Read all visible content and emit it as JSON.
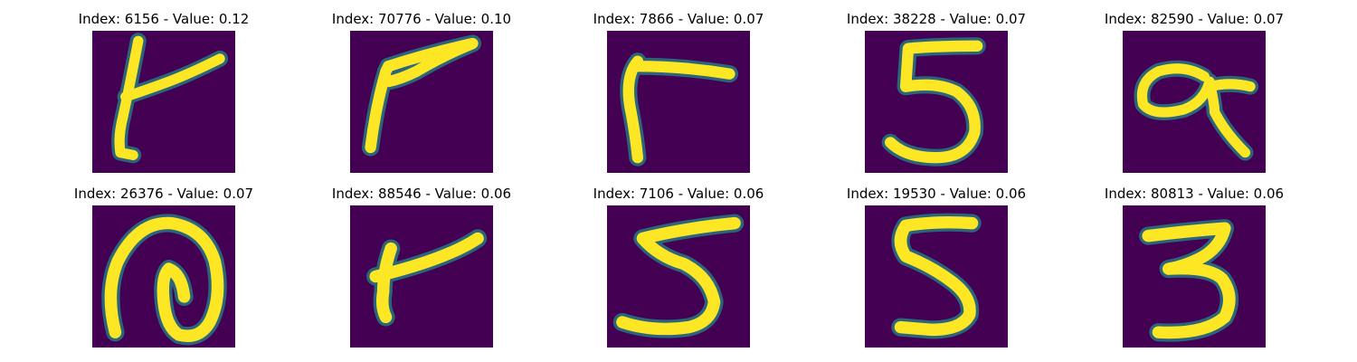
{
  "figure": {
    "background": "#ffffff",
    "cmap": "viridis",
    "image_bg": "#440154",
    "stroke_core": "#fde725",
    "stroke_edge": "#35b779",
    "stroke_halo": "#21908d",
    "panels": [
      {
        "title": "Index: 6156 - Value: 0.12",
        "icon": "handwritten-glyph-t-icon"
      },
      {
        "title": "Index: 70776 - Value: 0.10",
        "icon": "handwritten-glyph-f-icon"
      },
      {
        "title": "Index: 7866 - Value: 0.07",
        "icon": "handwritten-glyph-r-icon"
      },
      {
        "title": "Index: 38228 - Value: 0.07",
        "icon": "handwritten-digit-5-icon"
      },
      {
        "title": "Index: 82590 - Value: 0.07",
        "icon": "handwritten-glyph-a-icon"
      },
      {
        "title": "Index: 26376 - Value: 0.07",
        "icon": "handwritten-glyph-loop-icon"
      },
      {
        "title": "Index: 88546 - Value: 0.06",
        "icon": "handwritten-glyph-r-icon"
      },
      {
        "title": "Index: 7106 - Value: 0.06",
        "icon": "handwritten-digit-5-icon"
      },
      {
        "title": "Index: 19530 - Value: 0.06",
        "icon": "handwritten-digit-5-icon"
      },
      {
        "title": "Index: 80813 - Value: 0.06",
        "icon": "handwritten-digit-3-icon"
      }
    ]
  }
}
